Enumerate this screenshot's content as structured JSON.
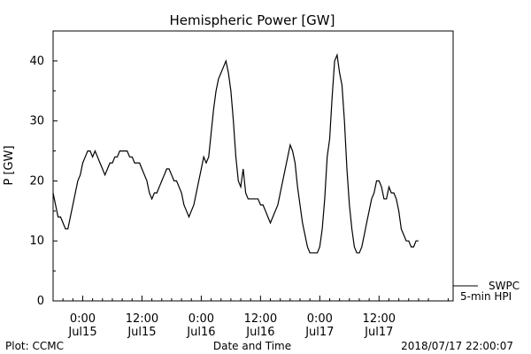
{
  "chart_data": {
    "type": "line",
    "title": "Hemispheric Power [GW]",
    "ylabel": "P [GW]",
    "xlabel": "Date and Time",
    "xlim": [
      -6,
      75
    ],
    "ylim": [
      0,
      45
    ],
    "yticks": [
      0,
      10,
      20,
      30,
      40
    ],
    "xticks": [
      {
        "x": 0,
        "time": "0:00",
        "date": "Jul15"
      },
      {
        "x": 12,
        "time": "12:00",
        "date": "Jul15"
      },
      {
        "x": 24,
        "time": "0:00",
        "date": "Jul16"
      },
      {
        "x": 36,
        "time": "12:00",
        "date": "Jul16"
      },
      {
        "x": 48,
        "time": "0:00",
        "date": "Jul17"
      },
      {
        "x": 60,
        "time": "12:00",
        "date": "Jul17"
      }
    ],
    "x_unit": "hours since Jul15 0:00",
    "grid": false,
    "series": [
      {
        "name": "SWPC",
        "points": [
          [
            -6,
            18
          ],
          [
            -5.5,
            16
          ],
          [
            -5,
            14
          ],
          [
            -4.5,
            14
          ],
          [
            -4,
            13
          ],
          [
            -3.5,
            12
          ],
          [
            -3,
            12
          ],
          [
            -2.5,
            14
          ],
          [
            -2,
            16
          ],
          [
            -1.5,
            18
          ],
          [
            -1,
            20
          ],
          [
            -0.5,
            21
          ],
          [
            0,
            23
          ],
          [
            0.5,
            24
          ],
          [
            1,
            25
          ],
          [
            1.5,
            25
          ],
          [
            2,
            24
          ],
          [
            2.5,
            25
          ],
          [
            3,
            24
          ],
          [
            3.5,
            23
          ],
          [
            4,
            22
          ],
          [
            4.5,
            21
          ],
          [
            5,
            22
          ],
          [
            5.5,
            23
          ],
          [
            6,
            23
          ],
          [
            6.5,
            24
          ],
          [
            7,
            24
          ],
          [
            7.5,
            25
          ],
          [
            8,
            25
          ],
          [
            8.5,
            25
          ],
          [
            9,
            25
          ],
          [
            9.5,
            24
          ],
          [
            10,
            24
          ],
          [
            10.5,
            23
          ],
          [
            11,
            23
          ],
          [
            11.5,
            23
          ],
          [
            12,
            22
          ],
          [
            12.5,
            21
          ],
          [
            13,
            20
          ],
          [
            13.5,
            18
          ],
          [
            14,
            17
          ],
          [
            14.5,
            18
          ],
          [
            15,
            18
          ],
          [
            15.5,
            19
          ],
          [
            16,
            20
          ],
          [
            16.5,
            21
          ],
          [
            17,
            22
          ],
          [
            17.5,
            22
          ],
          [
            18,
            21
          ],
          [
            18.5,
            20
          ],
          [
            19,
            20
          ],
          [
            19.5,
            19
          ],
          [
            20,
            18
          ],
          [
            20.5,
            16
          ],
          [
            21,
            15
          ],
          [
            21.5,
            14
          ],
          [
            22,
            15
          ],
          [
            22.5,
            16
          ],
          [
            23,
            18
          ],
          [
            23.5,
            20
          ],
          [
            24,
            22
          ],
          [
            24.5,
            24
          ],
          [
            25,
            23
          ],
          [
            25.5,
            24
          ],
          [
            26,
            28
          ],
          [
            26.5,
            32
          ],
          [
            27,
            35
          ],
          [
            27.5,
            37
          ],
          [
            28,
            38
          ],
          [
            28.5,
            39
          ],
          [
            29,
            40
          ],
          [
            29.5,
            38
          ],
          [
            30,
            35
          ],
          [
            30.5,
            30
          ],
          [
            31,
            24
          ],
          [
            31.5,
            20
          ],
          [
            32,
            19
          ],
          [
            32.5,
            22
          ],
          [
            33,
            18
          ],
          [
            33.5,
            17
          ],
          [
            34,
            17
          ],
          [
            34.5,
            17
          ],
          [
            35,
            17
          ],
          [
            35.5,
            17
          ],
          [
            36,
            16
          ],
          [
            36.5,
            16
          ],
          [
            37,
            15
          ],
          [
            37.5,
            14
          ],
          [
            38,
            13
          ],
          [
            38.5,
            14
          ],
          [
            39,
            15
          ],
          [
            39.5,
            16
          ],
          [
            40,
            18
          ],
          [
            40.5,
            20
          ],
          [
            41,
            22
          ],
          [
            41.5,
            24
          ],
          [
            42,
            26
          ],
          [
            42.5,
            25
          ],
          [
            43,
            23
          ],
          [
            43.5,
            19
          ],
          [
            44,
            16
          ],
          [
            44.5,
            13
          ],
          [
            45,
            11
          ],
          [
            45.5,
            9
          ],
          [
            46,
            8
          ],
          [
            46.5,
            8
          ],
          [
            47,
            8
          ],
          [
            47.5,
            8
          ],
          [
            48,
            9
          ],
          [
            48.5,
            12
          ],
          [
            49,
            17
          ],
          [
            49.5,
            24
          ],
          [
            50,
            27
          ],
          [
            50.5,
            34
          ],
          [
            51,
            40
          ],
          [
            51.5,
            41
          ],
          [
            52,
            38
          ],
          [
            52.5,
            36
          ],
          [
            53,
            30
          ],
          [
            53.5,
            22
          ],
          [
            54,
            16
          ],
          [
            54.5,
            12
          ],
          [
            55,
            9
          ],
          [
            55.5,
            8
          ],
          [
            56,
            8
          ],
          [
            56.5,
            9
          ],
          [
            57,
            11
          ],
          [
            57.5,
            13
          ],
          [
            58,
            15
          ],
          [
            58.5,
            17
          ],
          [
            59,
            18
          ],
          [
            59.5,
            20
          ],
          [
            60,
            20
          ],
          [
            60.5,
            19
          ],
          [
            61,
            17
          ],
          [
            61.5,
            17
          ],
          [
            62,
            19
          ],
          [
            62.5,
            18
          ],
          [
            63,
            18
          ],
          [
            63.5,
            17
          ],
          [
            64,
            15
          ],
          [
            64.5,
            12
          ],
          [
            65,
            11
          ],
          [
            65.5,
            10
          ],
          [
            66,
            10
          ],
          [
            66.5,
            9
          ],
          [
            67,
            9
          ],
          [
            67.5,
            10
          ],
          [
            68,
            10
          ]
        ]
      }
    ],
    "legend": {
      "line1": "SWPC",
      "line2": "5-min HPI",
      "position": "bottom-right outside"
    }
  },
  "footer": {
    "left": "Plot: CCMC",
    "center": "Date and Time",
    "right": "2018/07/17 22:00:07"
  }
}
